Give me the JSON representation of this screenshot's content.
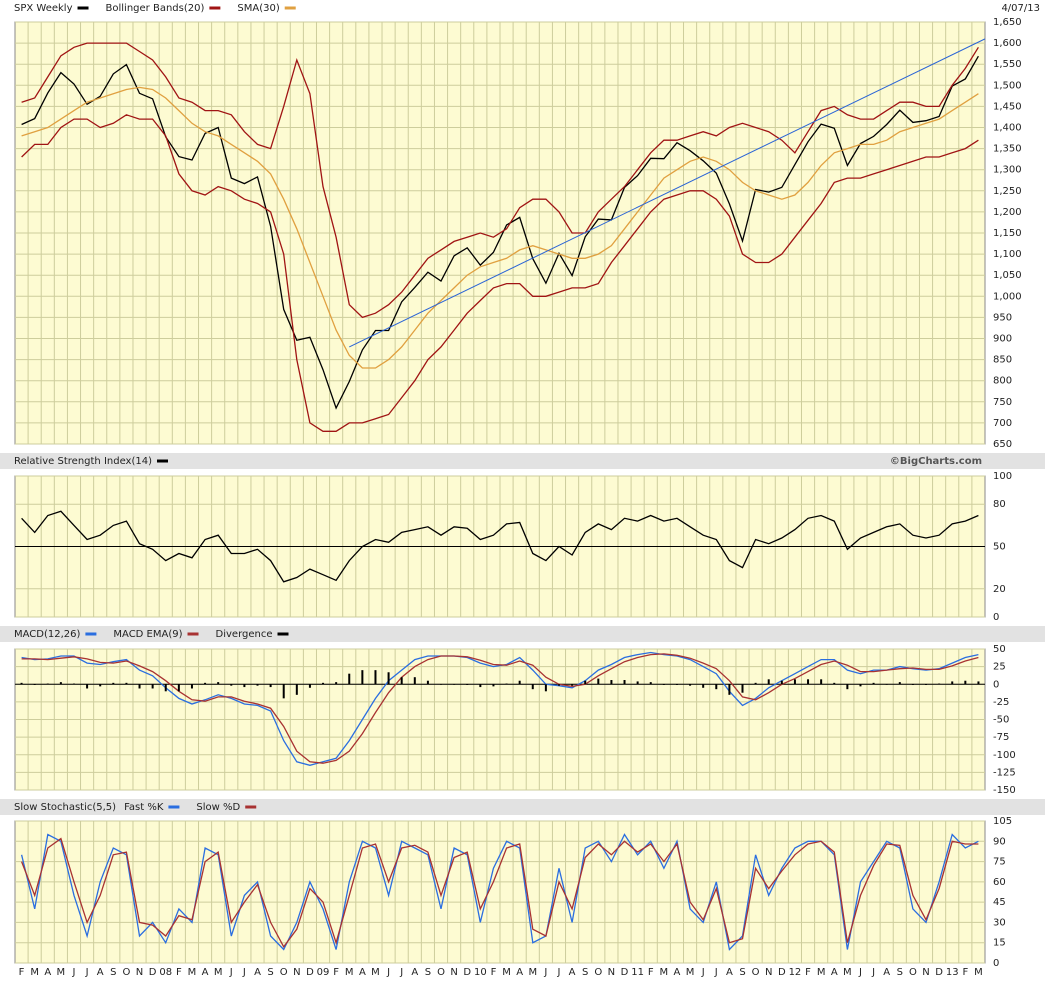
{
  "chart_data": [
    {
      "type": "line",
      "date": "4/07/13",
      "source": "©BigCharts.com",
      "ylim": [
        650,
        1650
      ],
      "yticks": [
        650,
        700,
        750,
        800,
        850,
        900,
        950,
        {
          "value": 1000,
          "label": "1,000"
        },
        {
          "value": 1050,
          "label": "1,050"
        },
        {
          "value": 1100,
          "label": "1,100"
        },
        {
          "value": 1150,
          "label": "1,150"
        },
        {
          "value": 1200,
          "label": "1,200"
        },
        {
          "value": 1250,
          "label": "1,250"
        },
        {
          "value": 1300,
          "label": "1,300"
        },
        {
          "value": 1350,
          "label": "1,350"
        },
        {
          "value": 1400,
          "label": "1,400"
        },
        {
          "value": 1450,
          "label": "1,450"
        },
        {
          "value": 1500,
          "label": "1,500"
        },
        {
          "value": 1550,
          "label": "1,550"
        },
        {
          "value": 1600,
          "label": "1,600"
        },
        {
          "value": 1650,
          "label": "1,650"
        }
      ],
      "grid": true,
      "trend_line": [
        880,
        1610
      ],
      "trend_color": "#2a64d6",
      "series": [
        {
          "name": "SPX Weekly",
          "color": "#000000",
          "values": [
            1407,
            1421,
            1482,
            1530,
            1503,
            1455,
            1474,
            1527,
            1549,
            1481,
            1468,
            1378,
            1331,
            1323,
            1386,
            1400,
            1280,
            1267,
            1283,
            1166,
            969,
            896,
            903,
            826,
            735,
            798,
            873,
            919,
            919,
            987,
            1021,
            1057,
            1036,
            1096,
            1115,
            1074,
            1104,
            1169,
            1187,
            1089,
            1031,
            1102,
            1049,
            1141,
            1183,
            1181,
            1258,
            1286,
            1327,
            1326,
            1364,
            1345,
            1321,
            1292,
            1219,
            1131,
            1253,
            1247,
            1258,
            1312,
            1366,
            1408,
            1398,
            1310,
            1362,
            1379,
            1407,
            1441,
            1412,
            1416,
            1426,
            1498,
            1515,
            1569
          ]
        },
        {
          "name": "Bollinger Bands(20)",
          "color": "#a01414",
          "values": [
            1460,
            1470,
            1520,
            1570,
            1590,
            1600,
            1600,
            1600,
            1600,
            1580,
            1560,
            1520,
            1470,
            1460,
            1440,
            1440,
            1430,
            1390,
            1360,
            1350,
            1450,
            1560,
            1480,
            1260,
            1140,
            980,
            950,
            960,
            980,
            1010,
            1050,
            1090,
            1110,
            1130,
            1140,
            1150,
            1140,
            1160,
            1210,
            1230,
            1230,
            1200,
            1150,
            1150,
            1200,
            1230,
            1260,
            1300,
            1340,
            1370,
            1370,
            1380,
            1390,
            1380,
            1400,
            1410,
            1400,
            1390,
            1370,
            1340,
            1390,
            1440,
            1450,
            1430,
            1420,
            1420,
            1440,
            1460,
            1460,
            1450,
            1450,
            1500,
            1540,
            1590
          ],
          "lower": [
            1330,
            1360,
            1360,
            1400,
            1420,
            1420,
            1400,
            1410,
            1430,
            1420,
            1420,
            1380,
            1290,
            1250,
            1240,
            1260,
            1250,
            1230,
            1220,
            1200,
            1100,
            850,
            700,
            680,
            680,
            700,
            700,
            710,
            720,
            760,
            800,
            850,
            880,
            920,
            960,
            990,
            1020,
            1030,
            1030,
            1000,
            1000,
            1010,
            1020,
            1020,
            1030,
            1080,
            1120,
            1160,
            1200,
            1230,
            1240,
            1250,
            1250,
            1230,
            1190,
            1100,
            1080,
            1080,
            1100,
            1140,
            1180,
            1220,
            1270,
            1280,
            1280,
            1290,
            1300,
            1310,
            1320,
            1330,
            1330,
            1340,
            1350,
            1370
          ]
        },
        {
          "name": "SMA(30)",
          "color": "#e0a040",
          "values": [
            1380,
            1390,
            1400,
            1420,
            1440,
            1460,
            1470,
            1480,
            1490,
            1495,
            1490,
            1470,
            1440,
            1410,
            1390,
            1380,
            1360,
            1340,
            1320,
            1290,
            1230,
            1160,
            1080,
            1000,
            920,
            860,
            830,
            830,
            850,
            880,
            920,
            960,
            990,
            1020,
            1050,
            1070,
            1080,
            1090,
            1110,
            1120,
            1110,
            1100,
            1090,
            1090,
            1100,
            1120,
            1160,
            1200,
            1240,
            1280,
            1300,
            1320,
            1330,
            1320,
            1300,
            1270,
            1250,
            1240,
            1230,
            1240,
            1270,
            1310,
            1340,
            1350,
            1360,
            1360,
            1370,
            1390,
            1400,
            1410,
            1420,
            1440,
            1460,
            1480
          ]
        }
      ]
    },
    {
      "type": "line",
      "ylim": [
        0,
        100
      ],
      "yticks": [
        0,
        20,
        50,
        80,
        100
      ],
      "grid": true,
      "ref_line": 50,
      "series": [
        {
          "name": "Relative Strength Index(14)",
          "color": "#000000",
          "values": [
            70,
            60,
            72,
            75,
            65,
            55,
            58,
            65,
            68,
            52,
            48,
            40,
            45,
            42,
            55,
            58,
            45,
            45,
            48,
            40,
            25,
            28,
            34,
            30,
            26,
            40,
            50,
            55,
            53,
            60,
            62,
            64,
            58,
            64,
            63,
            55,
            58,
            66,
            67,
            45,
            40,
            50,
            44,
            60,
            66,
            62,
            70,
            68,
            72,
            68,
            70,
            64,
            58,
            55,
            40,
            35,
            55,
            52,
            56,
            62,
            70,
            72,
            68,
            48,
            56,
            60,
            64,
            66,
            58,
            56,
            58,
            66,
            68,
            72
          ]
        }
      ]
    },
    {
      "type": "line",
      "ylim": [
        -150,
        50
      ],
      "yticks": [
        50,
        25,
        0,
        -25,
        -50,
        -75,
        -100,
        -125,
        -150
      ],
      "grid": true,
      "ref_line": 0,
      "series": [
        {
          "name": "MACD(12,26)",
          "color": "#2a6ee0",
          "values": [
            38,
            35,
            36,
            40,
            40,
            30,
            28,
            32,
            35,
            20,
            12,
            -5,
            -20,
            -28,
            -22,
            -15,
            -20,
            -28,
            -30,
            -38,
            -80,
            -110,
            -115,
            -110,
            -105,
            -80,
            -50,
            -20,
            5,
            20,
            35,
            40,
            40,
            40,
            38,
            30,
            25,
            28,
            38,
            20,
            0,
            -2,
            -5,
            5,
            20,
            28,
            38,
            42,
            45,
            42,
            40,
            35,
            25,
            15,
            -10,
            -30,
            -20,
            -5,
            5,
            15,
            25,
            35,
            35,
            20,
            15,
            20,
            20,
            25,
            22,
            20,
            22,
            30,
            38,
            42
          ]
        },
        {
          "name": "MACD EMA(9)",
          "color": "#a83232",
          "values": [
            36,
            36,
            35,
            37,
            39,
            36,
            31,
            30,
            33,
            26,
            18,
            5,
            -10,
            -22,
            -24,
            -18,
            -18,
            -24,
            -28,
            -34,
            -60,
            -95,
            -110,
            -112,
            -108,
            -95,
            -70,
            -40,
            -12,
            10,
            25,
            35,
            40,
            40,
            39,
            34,
            28,
            27,
            33,
            27,
            10,
            0,
            -3,
            0,
            12,
            22,
            32,
            38,
            42,
            43,
            41,
            37,
            30,
            22,
            5,
            -18,
            -22,
            -12,
            0,
            8,
            18,
            28,
            33,
            27,
            18,
            18,
            20,
            22,
            23,
            21,
            21,
            26,
            33,
            38
          ]
        },
        {
          "name": "Divergence",
          "color": "#000000",
          "type": "bar",
          "values": [
            2,
            -1,
            1,
            3,
            1,
            -6,
            -3,
            2,
            2,
            -6,
            -6,
            -10,
            -10,
            -6,
            2,
            3,
            -2,
            -4,
            -2,
            -4,
            -20,
            -15,
            -5,
            2,
            3,
            15,
            20,
            20,
            17,
            10,
            10,
            5,
            0,
            0,
            -1,
            -4,
            -3,
            1,
            5,
            -7,
            -10,
            -2,
            -2,
            5,
            8,
            6,
            6,
            4,
            3,
            -1,
            -1,
            -2,
            -5,
            -7,
            -15,
            -12,
            2,
            7,
            5,
            7,
            7,
            7,
            2,
            -7,
            -3,
            2,
            0,
            3,
            -1,
            -1,
            1,
            4,
            5,
            4
          ]
        }
      ]
    },
    {
      "type": "line",
      "title": "Slow Stochastic(5,5)",
      "ylim": [
        0,
        105
      ],
      "yticks": [
        0,
        15,
        30,
        45,
        60,
        75,
        90,
        105
      ],
      "grid": true,
      "categories": [
        "F",
        "M",
        "A",
        "M",
        "J",
        "J",
        "A",
        "S",
        "O",
        "N",
        "D",
        "08",
        "F",
        "M",
        "A",
        "M",
        "J",
        "J",
        "A",
        "S",
        "O",
        "N",
        "D",
        "09",
        "F",
        "M",
        "A",
        "M",
        "J",
        "J",
        "A",
        "S",
        "O",
        "N",
        "D",
        "10",
        "F",
        "M",
        "A",
        "M",
        "J",
        "J",
        "A",
        "S",
        "O",
        "N",
        "D",
        "11",
        "F",
        "M",
        "A",
        "M",
        "J",
        "J",
        "A",
        "S",
        "O",
        "N",
        "D",
        "12",
        "F",
        "M",
        "A",
        "M",
        "J",
        "J",
        "A",
        "S",
        "O",
        "N",
        "D",
        "13",
        "F",
        "M"
      ],
      "series": [
        {
          "name": "Fast %K",
          "color": "#2a6ee0",
          "values": [
            80,
            40,
            95,
            90,
            50,
            20,
            60,
            85,
            80,
            20,
            30,
            15,
            40,
            30,
            85,
            80,
            20,
            50,
            60,
            20,
            10,
            30,
            60,
            40,
            10,
            60,
            90,
            85,
            50,
            90,
            85,
            80,
            40,
            85,
            80,
            30,
            70,
            90,
            85,
            15,
            20,
            70,
            30,
            85,
            90,
            75,
            95,
            80,
            90,
            70,
            90,
            40,
            30,
            60,
            10,
            20,
            80,
            50,
            70,
            85,
            90,
            90,
            80,
            10,
            60,
            75,
            90,
            85,
            40,
            30,
            60,
            95,
            85,
            90
          ]
        },
        {
          "name": "Slow %D",
          "color": "#a83232",
          "values": [
            75,
            50,
            85,
            92,
            60,
            30,
            50,
            80,
            82,
            30,
            28,
            20,
            35,
            32,
            75,
            82,
            30,
            45,
            58,
            30,
            12,
            25,
            55,
            45,
            15,
            50,
            85,
            88,
            60,
            85,
            87,
            82,
            50,
            78,
            82,
            40,
            60,
            85,
            88,
            25,
            20,
            60,
            40,
            78,
            88,
            80,
            90,
            82,
            88,
            75,
            88,
            45,
            32,
            55,
            15,
            18,
            70,
            55,
            68,
            80,
            88,
            90,
            82,
            15,
            50,
            72,
            88,
            87,
            50,
            32,
            55,
            90,
            88,
            88
          ]
        }
      ]
    }
  ]
}
